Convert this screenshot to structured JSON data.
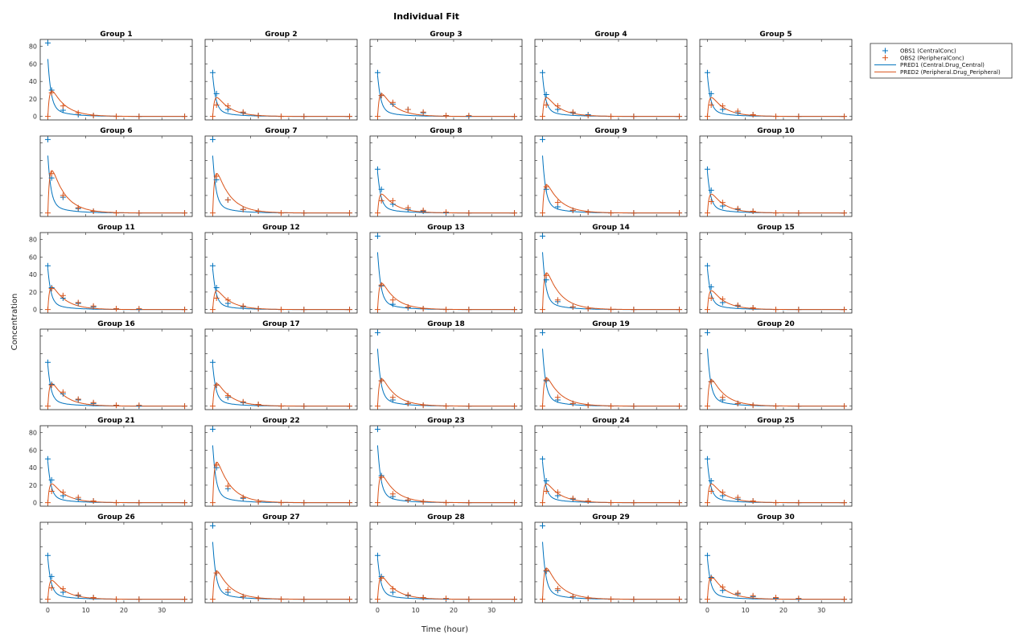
{
  "chart_data": {
    "type": "line",
    "title": "Individual Fit",
    "xlabel": "Time (hour)",
    "ylabel": "Concentration",
    "xlim": [
      -2,
      38
    ],
    "ylim": [
      -4,
      88
    ],
    "xticks": [
      0,
      10,
      20,
      30
    ],
    "yticks": [
      0,
      20,
      40,
      60,
      80
    ],
    "grid": false,
    "legend_position": "top-right",
    "colors": {
      "obs1": "#0072BD",
      "obs2": "#D95319",
      "pred1": "#0072BD",
      "pred2": "#D95319"
    },
    "legend": [
      {
        "key": "obs1",
        "label": "OBS1 (CentralConc)",
        "style": "marker"
      },
      {
        "key": "obs2",
        "label": "OBS2 (PeripheralConc)",
        "style": "marker"
      },
      {
        "key": "pred1",
        "label": "PRED1 (Central.Drug_Central)",
        "style": "line"
      },
      {
        "key": "pred2",
        "label": "PRED2 (Peripheral.Drug_Peripheral)",
        "style": "line"
      }
    ],
    "obs_times": [
      0,
      1,
      4,
      8,
      12,
      18,
      24,
      36
    ],
    "pred_time_range": [
      0,
      36
    ],
    "groups": [
      {
        "name": "Group 1",
        "central": [
          84,
          30,
          7,
          2,
          1,
          0,
          0,
          0
        ],
        "peripheral": [
          0,
          27,
          12,
          4,
          1,
          0,
          0,
          0
        ]
      },
      {
        "name": "Group 2",
        "central": [
          50,
          26,
          8,
          4,
          1,
          0,
          0,
          0
        ],
        "peripheral": [
          0,
          13,
          12,
          5,
          1,
          0,
          0,
          0
        ]
      },
      {
        "name": "Group 3",
        "central": [
          50,
          24,
          14,
          8,
          4,
          1,
          0,
          0
        ],
        "peripheral": [
          0,
          24,
          16,
          8,
          5,
          1,
          1,
          0
        ]
      },
      {
        "name": "Group 4",
        "central": [
          50,
          25,
          8,
          4,
          2,
          0,
          0,
          0
        ],
        "peripheral": [
          0,
          13,
          12,
          5,
          1,
          0,
          0,
          0
        ]
      },
      {
        "name": "Group 5",
        "central": [
          50,
          26,
          8,
          4,
          2,
          0,
          0,
          0
        ],
        "peripheral": [
          0,
          13,
          12,
          6,
          2,
          0,
          0,
          0
        ]
      },
      {
        "name": "Group 6",
        "central": [
          84,
          40,
          18,
          5,
          2,
          0,
          0,
          0
        ],
        "peripheral": [
          0,
          45,
          20,
          6,
          2,
          0,
          0,
          0
        ]
      },
      {
        "name": "Group 7",
        "central": [
          84,
          38,
          15,
          4,
          2,
          0,
          0,
          0
        ],
        "peripheral": [
          0,
          42,
          15,
          4,
          2,
          0,
          0,
          0
        ]
      },
      {
        "name": "Group 8",
        "central": [
          50,
          27,
          10,
          4,
          2,
          0,
          0,
          0
        ],
        "peripheral": [
          0,
          14,
          14,
          6,
          3,
          1,
          0,
          0
        ]
      },
      {
        "name": "Group 9",
        "central": [
          84,
          27,
          7,
          3,
          1,
          0,
          0,
          0
        ],
        "peripheral": [
          0,
          30,
          12,
          3,
          1,
          0,
          0,
          0
        ]
      },
      {
        "name": "Group 10",
        "central": [
          50,
          26,
          8,
          4,
          2,
          0,
          0,
          0
        ],
        "peripheral": [
          0,
          13,
          12,
          5,
          2,
          0,
          0,
          0
        ]
      },
      {
        "name": "Group 11",
        "central": [
          50,
          25,
          13,
          7,
          3,
          1,
          0,
          0
        ],
        "peripheral": [
          0,
          24,
          16,
          8,
          4,
          1,
          1,
          0
        ]
      },
      {
        "name": "Group 12",
        "central": [
          50,
          25,
          7,
          3,
          1,
          0,
          0,
          0
        ],
        "peripheral": [
          0,
          13,
          11,
          4,
          1,
          0,
          0,
          0
        ]
      },
      {
        "name": "Group 13",
        "central": [
          84,
          27,
          6,
          2,
          1,
          0,
          0,
          0
        ],
        "peripheral": [
          0,
          28,
          11,
          3,
          1,
          0,
          0,
          0
        ]
      },
      {
        "name": "Group 14",
        "central": [
          84,
          34,
          9,
          3,
          1,
          0,
          0,
          0
        ],
        "peripheral": [
          0,
          39,
          11,
          3,
          1,
          0,
          0,
          0
        ]
      },
      {
        "name": "Group 15",
        "central": [
          50,
          26,
          8,
          4,
          2,
          0,
          0,
          0
        ],
        "peripheral": [
          0,
          13,
          12,
          5,
          2,
          0,
          0,
          0
        ]
      },
      {
        "name": "Group 16",
        "central": [
          50,
          25,
          14,
          7,
          3,
          1,
          0,
          0
        ],
        "peripheral": [
          0,
          24,
          16,
          8,
          4,
          1,
          1,
          0
        ]
      },
      {
        "name": "Group 17",
        "central": [
          50,
          24,
          10,
          4,
          2,
          0,
          0,
          0
        ],
        "peripheral": [
          0,
          24,
          12,
          5,
          2,
          0,
          0,
          0
        ]
      },
      {
        "name": "Group 18",
        "central": [
          84,
          29,
          7,
          3,
          1,
          0,
          0,
          0
        ],
        "peripheral": [
          0,
          29,
          10,
          3,
          1,
          0,
          0,
          0
        ]
      },
      {
        "name": "Group 19",
        "central": [
          84,
          29,
          7,
          3,
          1,
          0,
          0,
          0
        ],
        "peripheral": [
          0,
          30,
          10,
          3,
          1,
          0,
          0,
          0
        ]
      },
      {
        "name": "Group 20",
        "central": [
          84,
          28,
          7,
          3,
          1,
          0,
          0,
          0
        ],
        "peripheral": [
          0,
          28,
          10,
          3,
          1,
          0,
          0,
          0
        ]
      },
      {
        "name": "Group 21",
        "central": [
          50,
          26,
          8,
          4,
          2,
          0,
          0,
          0
        ],
        "peripheral": [
          0,
          13,
          12,
          6,
          2,
          0,
          0,
          0
        ]
      },
      {
        "name": "Group 22",
        "central": [
          84,
          40,
          16,
          5,
          1,
          0,
          0,
          0
        ],
        "peripheral": [
          0,
          43,
          19,
          6,
          1,
          0,
          0,
          0
        ]
      },
      {
        "name": "Group 23",
        "central": [
          84,
          31,
          7,
          3,
          1,
          0,
          0,
          0
        ],
        "peripheral": [
          0,
          29,
          10,
          3,
          1,
          0,
          0,
          0
        ]
      },
      {
        "name": "Group 24",
        "central": [
          50,
          25,
          8,
          4,
          2,
          0,
          0,
          0
        ],
        "peripheral": [
          0,
          13,
          12,
          5,
          2,
          0,
          0,
          0
        ]
      },
      {
        "name": "Group 25",
        "central": [
          50,
          25,
          8,
          4,
          2,
          0,
          0,
          0
        ],
        "peripheral": [
          0,
          13,
          12,
          6,
          2,
          0,
          0,
          0
        ]
      },
      {
        "name": "Group 26",
        "central": [
          50,
          26,
          8,
          4,
          2,
          0,
          0,
          0
        ],
        "peripheral": [
          0,
          13,
          12,
          5,
          2,
          0,
          0,
          0
        ]
      },
      {
        "name": "Group 27",
        "central": [
          84,
          30,
          8,
          3,
          1,
          0,
          0,
          0
        ],
        "peripheral": [
          0,
          30,
          11,
          3,
          1,
          0,
          0,
          0
        ]
      },
      {
        "name": "Group 28",
        "central": [
          50,
          26,
          8,
          4,
          2,
          0,
          0,
          0
        ],
        "peripheral": [
          0,
          24,
          12,
          5,
          2,
          1,
          0,
          0
        ]
      },
      {
        "name": "Group 29",
        "central": [
          84,
          32,
          10,
          3,
          1,
          0,
          0,
          0
        ],
        "peripheral": [
          0,
          33,
          12,
          3,
          1,
          0,
          0,
          0
        ]
      },
      {
        "name": "Group 30",
        "central": [
          50,
          25,
          10,
          6,
          3,
          1,
          0,
          0
        ],
        "peripheral": [
          0,
          24,
          14,
          7,
          4,
          2,
          1,
          0
        ]
      }
    ]
  }
}
